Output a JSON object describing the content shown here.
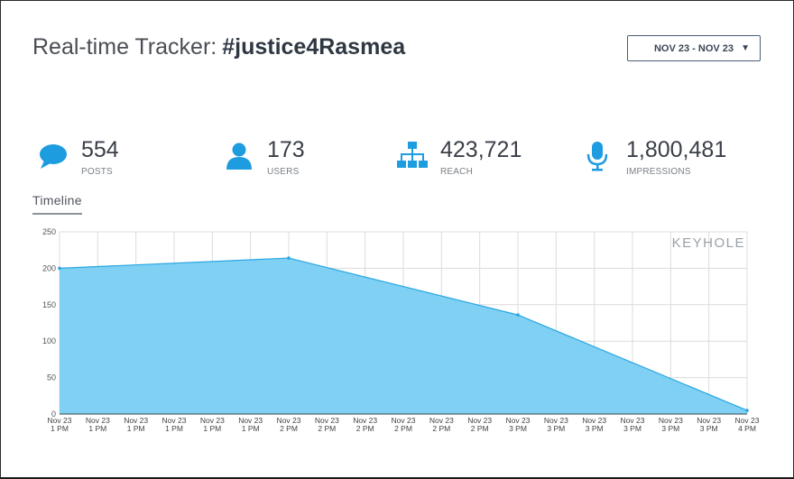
{
  "header": {
    "title_prefix": "Real-time Tracker:",
    "hashtag": "#justice4Rasmea",
    "date_range": "NOV 23 - NOV 23"
  },
  "stats": [
    {
      "value": "554",
      "label": "POSTS",
      "icon": "speech-bubble-icon"
    },
    {
      "value": "173",
      "label": "USERS",
      "icon": "user-icon"
    },
    {
      "value": "423,721",
      "label": "REACH",
      "icon": "network-icon"
    },
    {
      "value": "1,800,481",
      "label": "IMPRESSIONS",
      "icon": "microphone-icon"
    }
  ],
  "tabs": {
    "timeline": "Timeline"
  },
  "colors": {
    "accent": "#1e9ce0",
    "area_fill": "#7fd0f3",
    "line": "#2aa7e2"
  },
  "chart_data": {
    "type": "area",
    "watermark": "KEYHOLE",
    "x_labels": [
      "Nov 23\n1 PM",
      "Nov 23\n1 PM",
      "Nov 23\n1 PM",
      "Nov 23\n1 PM",
      "Nov 23\n1 PM",
      "Nov 23\n1 PM",
      "Nov 23\n2 PM",
      "Nov 23\n2 PM",
      "Nov 23\n2 PM",
      "Nov 23\n2 PM",
      "Nov 23\n2 PM",
      "Nov 23\n2 PM",
      "Nov 23\n3 PM",
      "Nov 23\n3 PM",
      "Nov 23\n3 PM",
      "Nov 23\n3 PM",
      "Nov 23\n3 PM",
      "Nov 23\n3 PM",
      "Nov 23\n4 PM"
    ],
    "points": [
      [
        0,
        200
      ],
      [
        6,
        214
      ],
      [
        12,
        136
      ],
      [
        18,
        5
      ]
    ],
    "ylim": [
      0,
      250
    ],
    "yticks": [
      0,
      50,
      100,
      150,
      200,
      250
    ],
    "grid": true,
    "xlabel": "",
    "ylabel": ""
  }
}
